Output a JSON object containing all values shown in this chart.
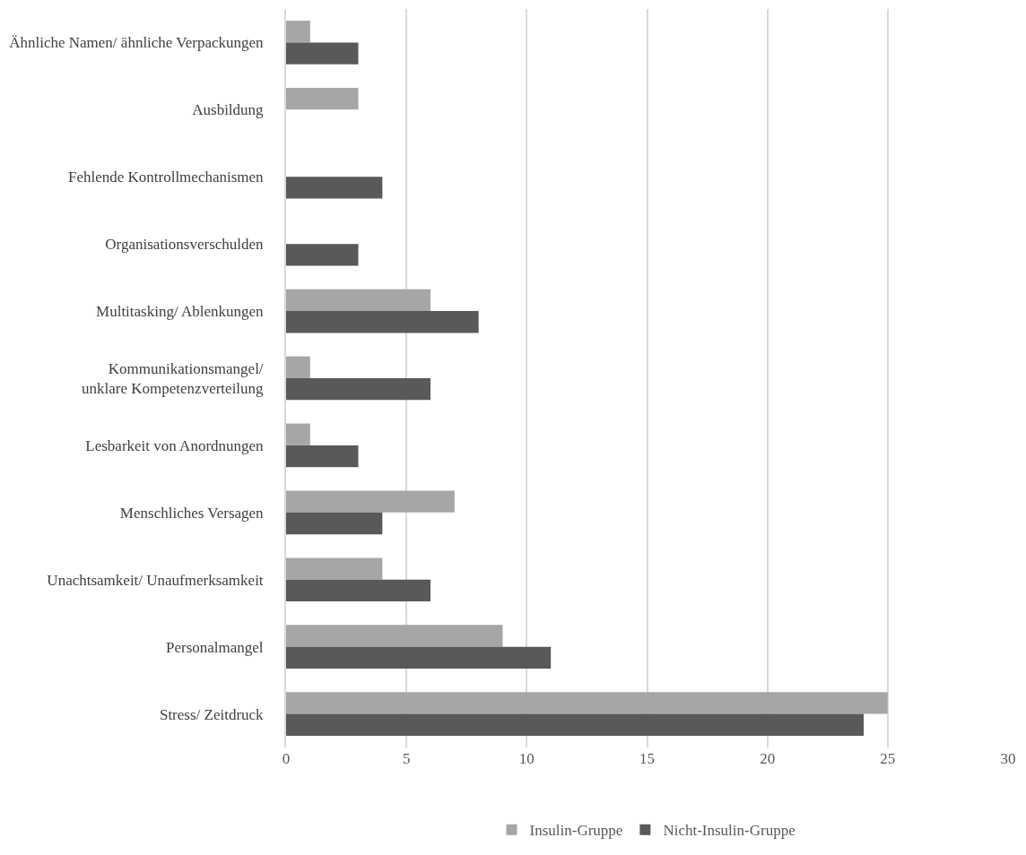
{
  "chart_data": {
    "type": "bar",
    "orientation": "horizontal",
    "categories": [
      "Ähnliche Namen/ ähnliche Verpackungen",
      "Ausbildung",
      "Fehlende Kontrollmechanismen",
      "Organisationsverschulden",
      "Multitasking/ Ablenkungen",
      "Kommunikationsmangel/\nunklare Kompetenzverteilung",
      "Lesbarkeit von Anordnungen",
      "Menschliches Versagen",
      "Unachtsamkeit/ Unaufmerksamkeit",
      "Personalmangel",
      "Stress/ Zeitdruck"
    ],
    "series": [
      {
        "name": "Insulin-Gruppe",
        "color": "#a6a6a6",
        "values": [
          1,
          3,
          0,
          0,
          6,
          1,
          1,
          7,
          4,
          9,
          25
        ]
      },
      {
        "name": "Nicht-Insulin-Gruppe",
        "color": "#595959",
        "values": [
          3,
          0,
          4,
          3,
          8,
          6,
          3,
          4,
          6,
          11,
          24
        ]
      }
    ],
    "xlim": [
      0,
      30
    ],
    "xticks": [
      0,
      5,
      10,
      15,
      20,
      25,
      30
    ],
    "grid": "x",
    "legend": "bottom"
  }
}
